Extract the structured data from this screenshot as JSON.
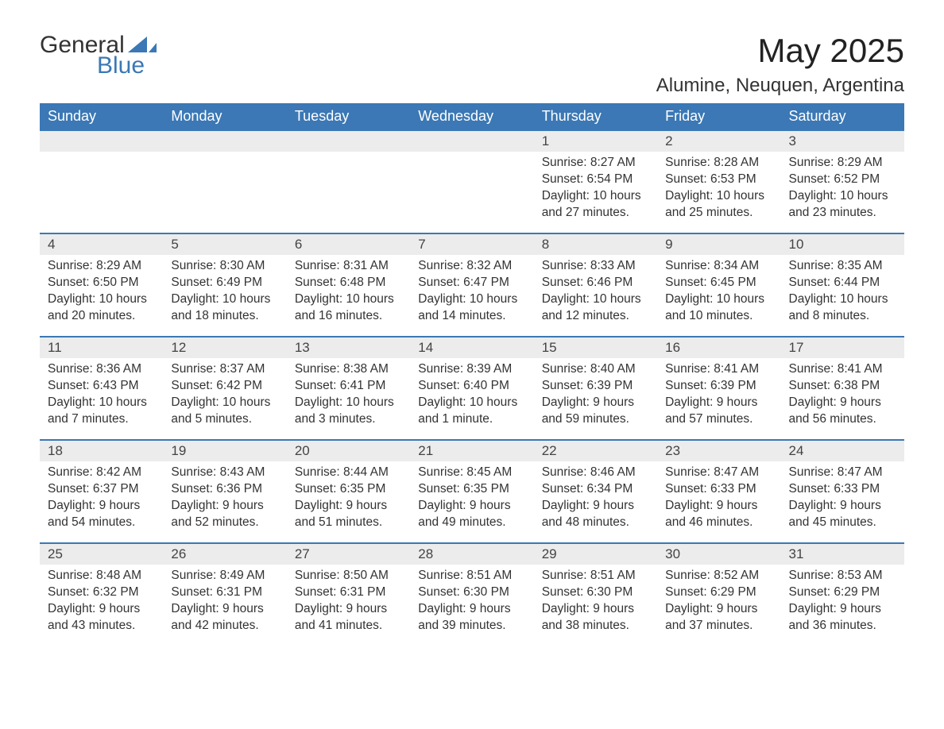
{
  "logo": {
    "text_general": "General",
    "text_blue": "Blue",
    "accent_color": "#3b78b5"
  },
  "title": "May 2025",
  "location": "Alumine, Neuquen, Argentina",
  "colors": {
    "header_bg": "#3b78b5",
    "header_text": "#ffffff",
    "daynum_bg": "#ececec",
    "row_border": "#3b78b5",
    "body_text": "#333333",
    "page_bg": "#ffffff"
  },
  "typography": {
    "title_fontsize": 42,
    "location_fontsize": 24,
    "weekday_fontsize": 18,
    "daynum_fontsize": 17,
    "body_fontsize": 15.5
  },
  "weekdays": [
    "Sunday",
    "Monday",
    "Tuesday",
    "Wednesday",
    "Thursday",
    "Friday",
    "Saturday"
  ],
  "labels": {
    "sunrise": "Sunrise:",
    "sunset": "Sunset:",
    "daylight": "Daylight:"
  },
  "weeks": [
    [
      null,
      null,
      null,
      null,
      {
        "n": "1",
        "sunrise": "8:27 AM",
        "sunset": "6:54 PM",
        "daylight": "10 hours and 27 minutes."
      },
      {
        "n": "2",
        "sunrise": "8:28 AM",
        "sunset": "6:53 PM",
        "daylight": "10 hours and 25 minutes."
      },
      {
        "n": "3",
        "sunrise": "8:29 AM",
        "sunset": "6:52 PM",
        "daylight": "10 hours and 23 minutes."
      }
    ],
    [
      {
        "n": "4",
        "sunrise": "8:29 AM",
        "sunset": "6:50 PM",
        "daylight": "10 hours and 20 minutes."
      },
      {
        "n": "5",
        "sunrise": "8:30 AM",
        "sunset": "6:49 PM",
        "daylight": "10 hours and 18 minutes."
      },
      {
        "n": "6",
        "sunrise": "8:31 AM",
        "sunset": "6:48 PM",
        "daylight": "10 hours and 16 minutes."
      },
      {
        "n": "7",
        "sunrise": "8:32 AM",
        "sunset": "6:47 PM",
        "daylight": "10 hours and 14 minutes."
      },
      {
        "n": "8",
        "sunrise": "8:33 AM",
        "sunset": "6:46 PM",
        "daylight": "10 hours and 12 minutes."
      },
      {
        "n": "9",
        "sunrise": "8:34 AM",
        "sunset": "6:45 PM",
        "daylight": "10 hours and 10 minutes."
      },
      {
        "n": "10",
        "sunrise": "8:35 AM",
        "sunset": "6:44 PM",
        "daylight": "10 hours and 8 minutes."
      }
    ],
    [
      {
        "n": "11",
        "sunrise": "8:36 AM",
        "sunset": "6:43 PM",
        "daylight": "10 hours and 7 minutes."
      },
      {
        "n": "12",
        "sunrise": "8:37 AM",
        "sunset": "6:42 PM",
        "daylight": "10 hours and 5 minutes."
      },
      {
        "n": "13",
        "sunrise": "8:38 AM",
        "sunset": "6:41 PM",
        "daylight": "10 hours and 3 minutes."
      },
      {
        "n": "14",
        "sunrise": "8:39 AM",
        "sunset": "6:40 PM",
        "daylight": "10 hours and 1 minute."
      },
      {
        "n": "15",
        "sunrise": "8:40 AM",
        "sunset": "6:39 PM",
        "daylight": "9 hours and 59 minutes."
      },
      {
        "n": "16",
        "sunrise": "8:41 AM",
        "sunset": "6:39 PM",
        "daylight": "9 hours and 57 minutes."
      },
      {
        "n": "17",
        "sunrise": "8:41 AM",
        "sunset": "6:38 PM",
        "daylight": "9 hours and 56 minutes."
      }
    ],
    [
      {
        "n": "18",
        "sunrise": "8:42 AM",
        "sunset": "6:37 PM",
        "daylight": "9 hours and 54 minutes."
      },
      {
        "n": "19",
        "sunrise": "8:43 AM",
        "sunset": "6:36 PM",
        "daylight": "9 hours and 52 minutes."
      },
      {
        "n": "20",
        "sunrise": "8:44 AM",
        "sunset": "6:35 PM",
        "daylight": "9 hours and 51 minutes."
      },
      {
        "n": "21",
        "sunrise": "8:45 AM",
        "sunset": "6:35 PM",
        "daylight": "9 hours and 49 minutes."
      },
      {
        "n": "22",
        "sunrise": "8:46 AM",
        "sunset": "6:34 PM",
        "daylight": "9 hours and 48 minutes."
      },
      {
        "n": "23",
        "sunrise": "8:47 AM",
        "sunset": "6:33 PM",
        "daylight": "9 hours and 46 minutes."
      },
      {
        "n": "24",
        "sunrise": "8:47 AM",
        "sunset": "6:33 PM",
        "daylight": "9 hours and 45 minutes."
      }
    ],
    [
      {
        "n": "25",
        "sunrise": "8:48 AM",
        "sunset": "6:32 PM",
        "daylight": "9 hours and 43 minutes."
      },
      {
        "n": "26",
        "sunrise": "8:49 AM",
        "sunset": "6:31 PM",
        "daylight": "9 hours and 42 minutes."
      },
      {
        "n": "27",
        "sunrise": "8:50 AM",
        "sunset": "6:31 PM",
        "daylight": "9 hours and 41 minutes."
      },
      {
        "n": "28",
        "sunrise": "8:51 AM",
        "sunset": "6:30 PM",
        "daylight": "9 hours and 39 minutes."
      },
      {
        "n": "29",
        "sunrise": "8:51 AM",
        "sunset": "6:30 PM",
        "daylight": "9 hours and 38 minutes."
      },
      {
        "n": "30",
        "sunrise": "8:52 AM",
        "sunset": "6:29 PM",
        "daylight": "9 hours and 37 minutes."
      },
      {
        "n": "31",
        "sunrise": "8:53 AM",
        "sunset": "6:29 PM",
        "daylight": "9 hours and 36 minutes."
      }
    ]
  ]
}
